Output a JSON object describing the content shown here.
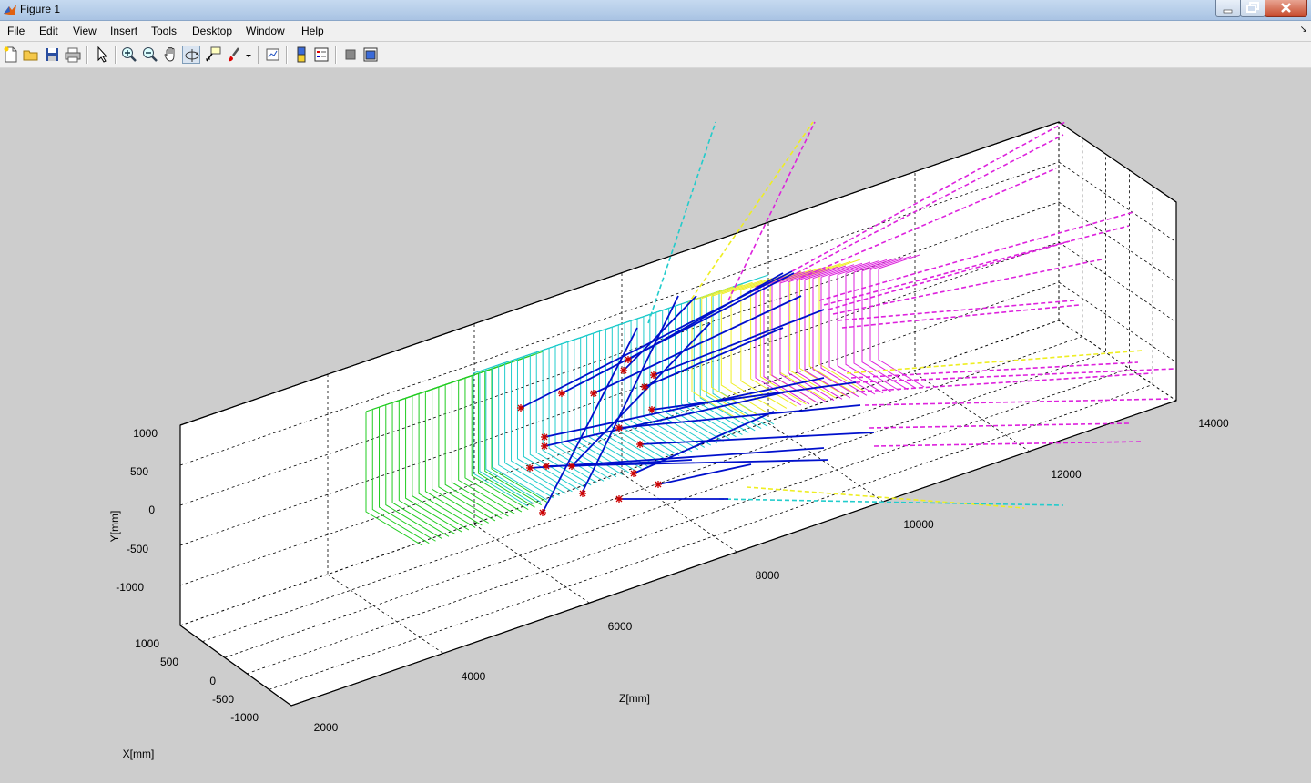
{
  "window": {
    "title": "Figure 1"
  },
  "menu": [
    "File",
    "Edit",
    "View",
    "Insert",
    "Tools",
    "Desktop",
    "Window",
    "Help"
  ],
  "toolbar": {
    "buttons": [
      "new-figure",
      "open-file",
      "save-figure",
      "print-figure",
      "edit-plot",
      "zoom-in",
      "zoom-out",
      "pan",
      "rotate-3d",
      "data-cursor",
      "brush",
      "link-plot",
      "colorbar",
      "legend",
      "hide-plot-tools",
      "show-plot-tools"
    ]
  },
  "axes": {
    "y_label": "Y[mm]",
    "z_label": "Z[mm]",
    "x_label": "X[mm]",
    "y_ticks": [
      "1000",
      "500",
      "0",
      "-500",
      "-1000"
    ],
    "x_ticks": [
      "1000",
      "500",
      "0",
      "-500",
      "-1000"
    ],
    "z_ticks": [
      "2000",
      "4000",
      "6000",
      "8000",
      "10000",
      "12000",
      "14000"
    ],
    "grid": true
  },
  "colors": {
    "background": "#cdcdcd",
    "green": "#22cc22",
    "cyan": "#22cccc",
    "magenta": "#dd22dd",
    "yellow": "#eeee22",
    "tracks": "#0010cc",
    "markers": "#cc0000"
  }
}
